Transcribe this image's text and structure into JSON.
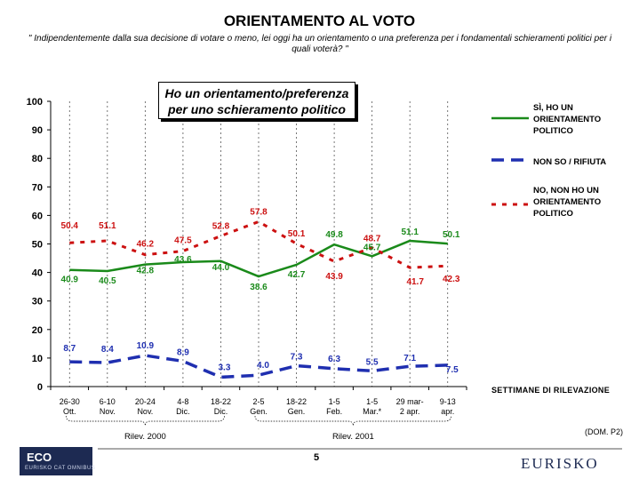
{
  "header": {
    "title": "ORIENTAMENTO AL VOTO",
    "question": "\" Indipendentemente dalla sua decisione di votare o meno, lei oggi ha un orientamento o una preferenza per i fondamentali schieramenti politici per i quali voterà? \""
  },
  "callout": {
    "line1": "Ho un orientamento/preferenza",
    "line2": "per uno schieramento politico"
  },
  "legend": {
    "si": [
      "SÌ, HO UN",
      "ORIENTAMENTO",
      "POLITICO"
    ],
    "nonso": [
      "NON SO / RIFIUTA"
    ],
    "no": [
      "NO, NON HO UN",
      "ORIENTAMENTO",
      "POLITICO"
    ]
  },
  "footer": {
    "settimane": "SETTIMANE DI RILEVAZIONE",
    "dom": "(DOM. P2)",
    "page": "5",
    "logo_left": "ECO",
    "logo_left_sub": "EURISKO CAT OMNIBUS",
    "logo_right": "EURISKO"
  },
  "chart_data": {
    "type": "line",
    "ylim": [
      0,
      100
    ],
    "yticks": [
      0,
      10,
      20,
      30,
      40,
      50,
      60,
      70,
      80,
      90,
      100
    ],
    "grid": "vertical dashed",
    "categories": [
      [
        "26-30",
        "Ott."
      ],
      [
        "6-10",
        "Nov."
      ],
      [
        "20-24",
        "Nov."
      ],
      [
        "4-8",
        "Dic."
      ],
      [
        "18-22",
        "Dic."
      ],
      [
        "2-5",
        "Gen."
      ],
      [
        "18-22",
        "Gen."
      ],
      [
        "1-5",
        "Feb."
      ],
      [
        "1-5",
        "Mar.*"
      ],
      [
        "29 mar-",
        "2 apr."
      ],
      [
        "9-13",
        "apr."
      ]
    ],
    "groups": [
      {
        "label": "Rilev. 2000",
        "from": 0,
        "to": 4
      },
      {
        "label": "Rilev. 2001",
        "from": 5,
        "to": 10
      }
    ],
    "series": [
      {
        "name": "SÌ, HO UN ORIENTAMENTO POLITICO",
        "color": "#1a8a1a",
        "style": "solid",
        "values": [
          40.9,
          40.5,
          42.8,
          43.6,
          44.0,
          38.6,
          42.7,
          49.8,
          45.7,
          51.1,
          50.1
        ],
        "labels": [
          "40.9",
          "40.5",
          "42.8",
          "43.6",
          "44.0",
          "38.6",
          "42.7",
          "49.8",
          "45.7",
          "51.1",
          "50.1"
        ]
      },
      {
        "name": "NON SO / RIFIUTA",
        "color": "#1f2fb0",
        "style": "longdash",
        "values": [
          8.7,
          8.4,
          10.9,
          8.9,
          3.3,
          4.0,
          7.3,
          6.3,
          5.5,
          7.1,
          7.5
        ],
        "labels": [
          "8.7",
          "8.4",
          "10.9",
          "8.9",
          "3.3",
          "4.0",
          "7.3",
          "6.3",
          "5.5",
          "7.1",
          "7.5"
        ]
      },
      {
        "name": "NO, NON HO UN ORIENTAMENTO POLITICO",
        "color": "#cc1111",
        "style": "dotted",
        "values": [
          50.4,
          51.1,
          46.2,
          47.5,
          52.8,
          57.8,
          50.1,
          43.9,
          48.7,
          41.7,
          42.3
        ],
        "labels": [
          "50.4",
          "51.1",
          "46.2",
          "47.5",
          "52.8",
          "57.8",
          "50.1",
          "43.9",
          "48.7",
          "41.7",
          "42.3"
        ]
      }
    ]
  }
}
